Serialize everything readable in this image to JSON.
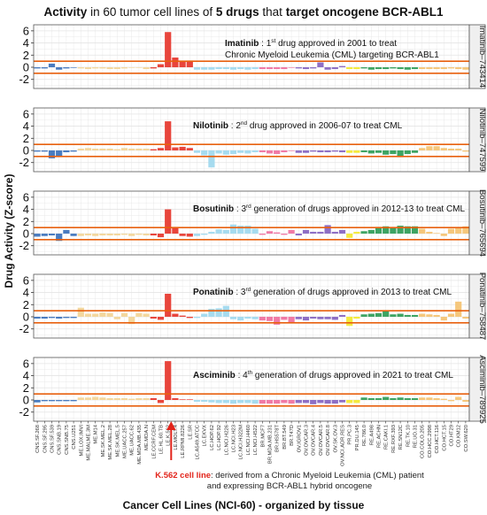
{
  "title_parts": [
    {
      "text": "Activity",
      "bold": true
    },
    {
      "text": " in 60 tumor cell lines of ",
      "bold": false
    },
    {
      "text": "5 drugs",
      "bold": true
    },
    {
      "text": " that ",
      "bold": false
    },
    {
      "text": "target oncogene BCR-ABL1",
      "bold": true
    }
  ],
  "colors": {
    "threshold": "#e8600f",
    "highlight_arrow": "#e2241b",
    "grid": "#e4e4e4",
    "panel_border": "#555555",
    "strip_bg": "#efefef"
  },
  "footnote": {
    "highlight": "K.562 cell line",
    "line1": ": derived from a Chronic Myeloid Leukemia (CML) patient",
    "line2": "and expressing BCR-ABL1 hybrid oncogene"
  },
  "chart_data": {
    "type": "bar",
    "title": "Activity in 60 tumor cell lines of 5 drugs that target oncogene BCR-ABL1",
    "xlabel": "Cancer Cell Lines (NCI-60) - organized by tissue",
    "ylabel": "Drug Activity (Z-score)",
    "ylim": [
      -3.5,
      7
    ],
    "yticks": [
      -2,
      0,
      2,
      4,
      6
    ],
    "threshold_lines": [
      -1,
      1
    ],
    "grid": true,
    "tissue_colors": {
      "CNS": "#4a7cc0",
      "ME": "#f3d79e",
      "LE": "#e8453c",
      "LC": "#a6dbef",
      "BR": "#f07aa6",
      "OV": "#8e6fc5",
      "PR": "#f4ea3e",
      "RE": "#3ea463",
      "CO": "#f5c77c"
    },
    "categories": [
      "CNS.SF.268",
      "CNS.SF.295",
      "CNS.SF.539",
      "CNS.SNB.19",
      "CNS.SNB.75",
      "CNS.U251",
      "ME.LOX.IMVI",
      "ME.MALME.3M",
      "ME.M14",
      "ME.SK.MEL.2",
      "ME.SK.MEL.28",
      "ME.SK.MEL.5",
      "ME.UACC.257",
      "ME.UACC.62",
      "ME.MDA.MB.435",
      "ME.MDA.N",
      "LE.CCRF.CEM",
      "LE.HL.60.TB",
      "LE.K.562",
      "LE.MOLT.4",
      "LE.RPMI.8226",
      "LE.SR",
      "LC.A549.ATCC",
      "LC.EKVX",
      "LC.HOP.62",
      "LC.HOP.92",
      "LC.NCI.H226",
      "LC.NCI.H23",
      "LC.NCI.H322M",
      "LC.NCI.H460",
      "LC.NCI.H522",
      "BR.MCF7",
      "BR.MDA.MB.231",
      "BR.HS578T",
      "BR.BT.549",
      "BR.T47D",
      "OV.IGROV1",
      "OV.OVCAR.3",
      "OV.OVCAR.4",
      "OV.OVCAR.5",
      "OV.OVCAR.8",
      "OV.SK.OV.3",
      "OV.NCI.ADR.RES",
      "PR.PC.3",
      "PR.DU.145",
      "RE.786.0",
      "RE.A498",
      "RE.ACHN",
      "RE.CAKI.1",
      "RE.RXF.393",
      "RE.SN12C",
      "RE.TK.10",
      "RE.UO.31",
      "CO.COLO.205",
      "CO.HCC.2998",
      "CO.HCT.116",
      "CO.HCT.15",
      "CO.HT29",
      "CO.KM12",
      "CO.SW.620"
    ],
    "tick_labels_shown": [
      "CNS.SF.268",
      "CNS.SF.295",
      "CNS.SF.539",
      "CNS.SNB.19",
      "CNS.SNB.75",
      "CNS.U251",
      "ME.LOX.IMVI",
      "ME.MALME.3M",
      "ME.M14",
      "ME.SK.MEL.2",
      "ME.SK.MEL.28",
      "ME.SK.MEL.5",
      "ME.UACC.257",
      "ME.UACC.62",
      "ME.MDA.MB.435",
      "ME.MDA.N",
      "LE.CCRF.CEM",
      "LE.HL.60.TB",
      "LE.K.562",
      "LE.MOLT.4",
      "LE.RPMI.8226",
      "LE.SR",
      "LC.A549.ATCC",
      "LC.EKVX",
      "LC.HOP.62",
      "LC.HOP.92",
      "LC.NCI.H226",
      "LC.NCI.H23",
      "LC.NCI.H322M",
      "LC.NCI.H460",
      "LC.NCI.H522",
      "BR.MCF7",
      "BR.MDA.MB.231",
      "BR.HS578T",
      "BR.BT.549",
      "BR.T47D",
      "OV.IGROV1",
      "OV.OVCAR.3",
      "OV.OVCAR.4",
      "OV.OVCAR.5",
      "OV.OVCAR.8",
      "OV.SK.OV.3",
      "OV.NCI.ADR.RES",
      "PR.PC.3",
      "PR.DU.145",
      "RE.786.0",
      "RE.A498",
      "RE.ACHN",
      "RE.CAKI.1",
      "RE.RXF.393",
      "RE.SN12C",
      "RE.TK.10",
      "RE.UO.31",
      "CO.COLO.205",
      "CO.HCC.2998",
      "CO.HCT.116",
      "CO.HCT.15",
      "CO.HT29",
      "CO.KM12",
      "CO.SW.620"
    ],
    "highlight_category": "LE.K.562",
    "series": [
      {
        "name": "Imatinib–743414",
        "annotation": {
          "drug": "Imatinib",
          "rank_num": "1",
          "rank_sup": "st",
          "line1": " drug approved in 2001 to treat",
          "line2": "Chronic Myeloid Leukemia (CML) targeting BCR-ABL1"
        },
        "values": [
          -0.2,
          -0.2,
          0.6,
          -0.4,
          -0.2,
          -0.1,
          -0.2,
          -0.3,
          -0.2,
          -0.2,
          -0.3,
          -0.3,
          -0.2,
          -0.1,
          -0.1,
          -0.3,
          -0.2,
          0.5,
          5.8,
          1.6,
          1.0,
          1.1,
          -0.4,
          -0.4,
          -0.4,
          -0.3,
          -0.3,
          -0.4,
          -0.3,
          -0.4,
          -0.3,
          -0.3,
          -0.3,
          -0.3,
          -0.3,
          -0.1,
          -0.2,
          -0.3,
          -0.2,
          0.8,
          -0.4,
          -0.3,
          0.2,
          -0.3,
          -0.3,
          -0.2,
          -0.4,
          -0.3,
          -0.3,
          -0.2,
          -0.3,
          -0.4,
          -0.3,
          -0.3,
          -0.3,
          -0.3,
          -0.3,
          -0.2,
          -0.3,
          -0.4
        ]
      },
      {
        "name": "Nilotinib–747599",
        "annotation": {
          "drug": "Nilotinib",
          "rank_num": "2",
          "rank_sup": "nd",
          "line1": " drug approved in 2006-07 to treat CML",
          "line2": ""
        },
        "values": [
          -0.2,
          -0.2,
          -1.3,
          -1.0,
          -0.3,
          -0.2,
          0.3,
          0.4,
          0.3,
          0.3,
          0.3,
          0.2,
          0.4,
          0.3,
          0.3,
          0.3,
          0.2,
          0.4,
          4.8,
          0.5,
          0.6,
          0.4,
          -0.4,
          -0.8,
          -2.8,
          -0.5,
          -0.7,
          -0.6,
          -0.4,
          -0.5,
          -0.3,
          -0.3,
          -0.5,
          -0.6,
          -0.3,
          -0.1,
          -0.4,
          -0.4,
          -0.2,
          -0.3,
          -0.3,
          -0.2,
          -0.3,
          -0.4,
          -0.4,
          -0.3,
          -0.5,
          -0.4,
          -0.7,
          -0.6,
          -1.1,
          -0.6,
          -0.4,
          0.4,
          0.7,
          0.7,
          0.4,
          0.3,
          0.3,
          -0.2
        ]
      },
      {
        "name": "Bosutinib–765694",
        "annotation": {
          "drug": "Bosutinib",
          "rank_num": "3",
          "rank_sup": "rd",
          "line1": " generation of drugs approved in 2012-13 to treat CML",
          "line2": ""
        },
        "values": [
          -0.5,
          -0.4,
          -0.3,
          -1.2,
          0.6,
          -0.4,
          -0.4,
          -0.3,
          -0.4,
          -0.3,
          -0.3,
          -0.3,
          -0.2,
          -0.4,
          -0.2,
          -0.3,
          -0.3,
          -0.6,
          4.0,
          0.9,
          -0.4,
          -0.5,
          -0.4,
          -0.2,
          0.3,
          0.7,
          0.6,
          1.5,
          1.3,
          1.3,
          0.8,
          -0.2,
          0.4,
          0.2,
          -0.2,
          0.6,
          -0.3,
          0.6,
          0.3,
          0.3,
          1.4,
          0.3,
          0.6,
          -0.7,
          0.3,
          0.4,
          0.6,
          1.1,
          1.2,
          0.9,
          1.3,
          1.2,
          1.2,
          0.8,
          0.3,
          0.1,
          -0.4,
          0.8,
          1.0,
          1.2
        ]
      },
      {
        "name": "Ponatinib–758487",
        "annotation": {
          "drug": "Ponatinib",
          "rank_num": "3",
          "rank_sup": "rd",
          "line1": " generation of drugs approved in 2013 to treat CML",
          "line2": ""
        },
        "values": [
          -0.3,
          -0.3,
          -0.2,
          -0.3,
          -0.2,
          -0.2,
          1.5,
          0.5,
          0.5,
          0.7,
          0.6,
          -0.4,
          0.6,
          -1.2,
          0.6,
          0.5,
          -0.3,
          -0.5,
          3.8,
          0.5,
          0.2,
          -0.2,
          -0.2,
          0.5,
          1.3,
          1.4,
          1.8,
          -0.4,
          -0.6,
          -0.3,
          -0.4,
          -0.6,
          -0.7,
          -1.3,
          -0.5,
          -1.0,
          -0.4,
          -0.6,
          -0.3,
          -0.4,
          -0.4,
          -0.5,
          0.3,
          -1.5,
          -0.3,
          0.4,
          0.5,
          0.6,
          0.9,
          0.4,
          0.5,
          0.3,
          0.3,
          0.5,
          0.4,
          0.3,
          -0.6,
          0.5,
          2.5,
          -0.3
        ]
      },
      {
        "name": "Asciminib–789925",
        "annotation": {
          "drug": "Asciminib",
          "rank_num": "4",
          "rank_sup": "th",
          "line1": " generation of drugs approved in 2021 to treat CML",
          "line2": ""
        },
        "values": [
          -0.4,
          -0.2,
          -0.2,
          -0.2,
          -0.2,
          -0.2,
          0.4,
          0.4,
          0.5,
          0.4,
          0.3,
          0.3,
          0.3,
          0.2,
          0.3,
          0.3,
          0.3,
          -0.5,
          6.4,
          0.3,
          0.1,
          0.1,
          -0.3,
          -0.3,
          -0.4,
          -0.5,
          -0.5,
          -0.6,
          -0.5,
          -0.5,
          -0.6,
          -0.6,
          -0.6,
          -0.6,
          -0.5,
          -0.6,
          -0.5,
          -0.5,
          -0.7,
          -0.5,
          -0.6,
          -0.6,
          -0.4,
          -0.5,
          -0.5,
          0.4,
          0.3,
          0.3,
          0.5,
          0.3,
          0.4,
          0.3,
          0.3,
          0.4,
          0.4,
          0.3,
          0.2,
          -0.2,
          0.5,
          -0.3
        ]
      }
    ]
  }
}
